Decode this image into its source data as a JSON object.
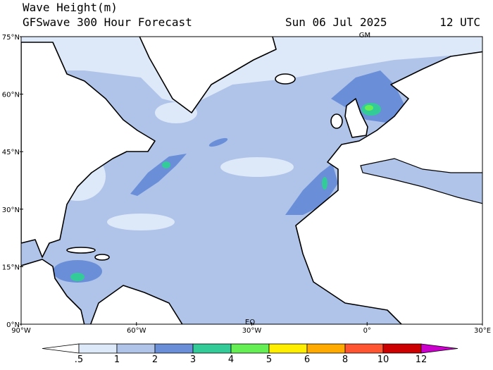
{
  "header": {
    "title": "Wave Height(m)",
    "subtitle": "GFSwave 300 Hour Forecast",
    "date": "Sun 06 Jul 2025",
    "time": "12 UTC"
  },
  "map": {
    "lat_labels": [
      "75°N",
      "60°N",
      "45°N",
      "30°N",
      "15°N",
      "0°N"
    ],
    "lon_labels": [
      "90°W",
      "60°W",
      "30°W",
      "0°",
      "30°E"
    ],
    "markers": [
      "GM",
      "EQ"
    ]
  },
  "legend": {
    "labels": [
      ".5",
      "1",
      "2",
      "3",
      "4",
      "5",
      "6",
      "8",
      "10",
      "12"
    ],
    "colors": [
      "#ffffff",
      "#dde8f8",
      "#b0c4ea",
      "#6a8fd8",
      "#33cc99",
      "#66ee55",
      "#ffee00",
      "#ffaa00",
      "#ff5533",
      "#cc0000",
      "#cc00cc"
    ]
  }
}
